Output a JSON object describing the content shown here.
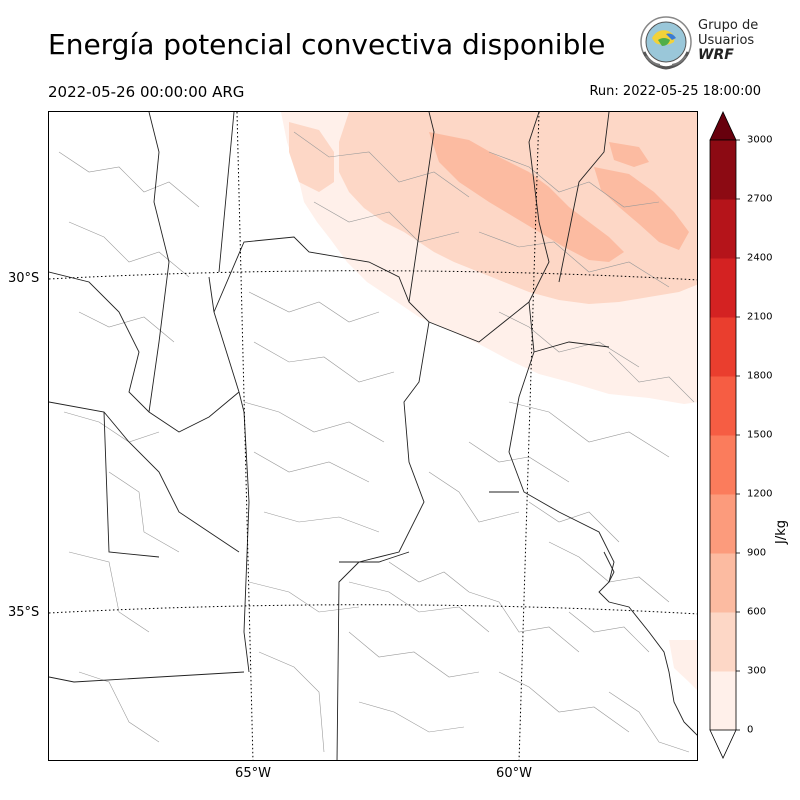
{
  "header": {
    "title": "Energía potencial convectiva disponible",
    "valid_time": "2022-05-26 00:00:00 ARG",
    "run_time": "Run: 2022-05-25 18:00:00"
  },
  "logo": {
    "line1": "Grupo de",
    "line2": "Usuarios",
    "line3": "WRF"
  },
  "map": {
    "lat_labels": [
      "30°S",
      "35°S"
    ],
    "lon_labels": [
      "65°W",
      "60°W"
    ],
    "field_colors": {
      "level_0_300": "#fff0ea",
      "level_300_600": "#fdd7c6",
      "level_600_900": "#fcbba1"
    }
  },
  "colorbar": {
    "units": "J/kg",
    "tick_labels": [
      "3000",
      "2700",
      "2400",
      "2100",
      "1800",
      "1500",
      "1200",
      "900",
      "600",
      "300",
      "0"
    ],
    "colors": [
      "#fff5f0",
      "#fee0d2",
      "#fcbba1",
      "#fc9272",
      "#fb6a4a",
      "#f44e37",
      "#ef3b2c",
      "#cb181d",
      "#b11218",
      "#a50f15",
      "#67000d"
    ],
    "extend_colors": {
      "low": "#ffffff",
      "high": "#67000d"
    }
  }
}
